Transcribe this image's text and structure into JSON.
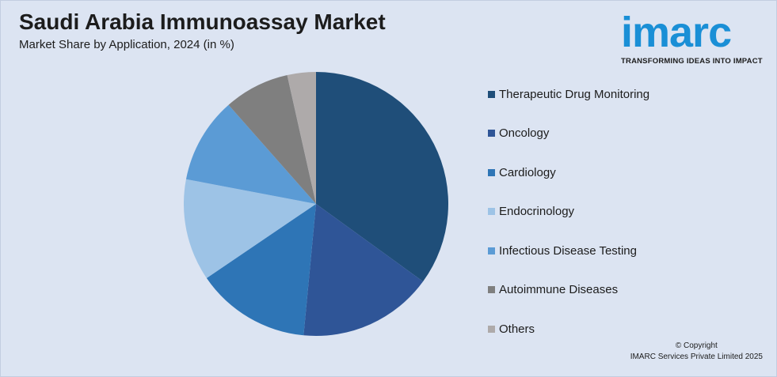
{
  "title": "Saudi Arabia Immunoassay Market",
  "subtitle": "Market Share by Application, 2024 (in %)",
  "logo": {
    "word": "imarc",
    "tagline": "TRANSFORMING IDEAS INTO IMPACT",
    "color": "#1a8fd6"
  },
  "copyright": {
    "line1": "© Copyright",
    "line2": "IMARC Services Private Limited 2025"
  },
  "chart_data": {
    "type": "pie",
    "title": "Saudi Arabia Immunoassay Market",
    "subtitle": "Market Share by Application, 2024 (in %)",
    "legend_position": "right",
    "slices": [
      {
        "label": "Therapeutic Drug Monitoring",
        "value": 35.0,
        "color": "#1f4e79"
      },
      {
        "label": "Oncology",
        "value": 16.5,
        "color": "#2f5597"
      },
      {
        "label": "Cardiology",
        "value": 14.0,
        "color": "#2e75b6"
      },
      {
        "label": "Endocrinology",
        "value": 12.5,
        "color": "#9dc3e6"
      },
      {
        "label": "Infectious Disease Testing",
        "value": 10.5,
        "color": "#5b9bd5"
      },
      {
        "label": "Autoimmune Diseases",
        "value": 8.0,
        "color": "#7f7f7f"
      },
      {
        "label": "Others",
        "value": 3.5,
        "color": "#aeaaaa"
      }
    ]
  }
}
